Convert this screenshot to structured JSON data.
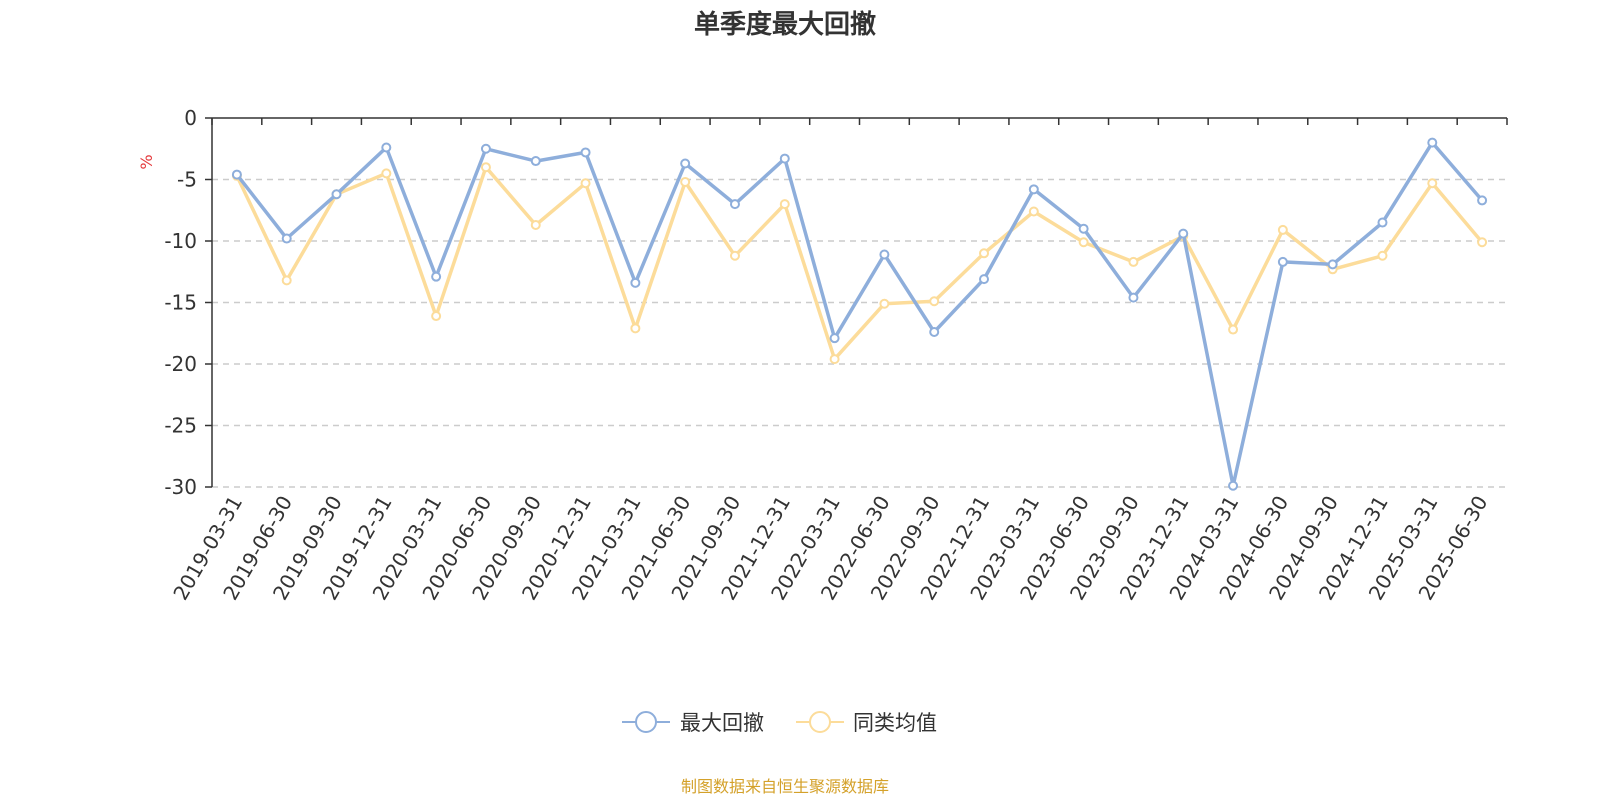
{
  "chart_data": {
    "type": "line",
    "title": "单季度最大回撤",
    "ylabel": "%",
    "ylim": [
      -30,
      0
    ],
    "yticks": [
      0,
      -5,
      -10,
      -15,
      -20,
      -25,
      -30
    ],
    "grid": true,
    "legend_position": "bottom-center",
    "categories": [
      "2019-03-31",
      "2019-06-30",
      "2019-09-30",
      "2019-12-31",
      "2020-03-31",
      "2020-06-30",
      "2020-09-30",
      "2020-12-31",
      "2021-03-31",
      "2021-06-30",
      "2021-09-30",
      "2021-12-31",
      "2022-03-31",
      "2022-06-30",
      "2022-09-30",
      "2022-12-31",
      "2023-03-31",
      "2023-06-30",
      "2023-09-30",
      "2023-12-31",
      "2024-03-31",
      "2024-06-30",
      "2024-09-30",
      "2024-12-31",
      "2025-03-31",
      "2025-06-30"
    ],
    "series": [
      {
        "name": "最大回撤",
        "color": "#8eaedb",
        "values": [
          -4.6,
          -9.8,
          -6.2,
          -2.4,
          -12.9,
          -2.5,
          -3.5,
          -2.8,
          -13.4,
          -3.7,
          -7.0,
          -3.3,
          -17.9,
          -11.1,
          -17.4,
          -13.1,
          -5.8,
          -9.0,
          -14.6,
          -9.4,
          -29.9,
          -11.7,
          -11.9,
          -8.5,
          -2.0,
          -6.7
        ]
      },
      {
        "name": "同类均值",
        "color": "#fcdc9a",
        "values": [
          -4.7,
          -13.2,
          -6.2,
          -4.5,
          -16.1,
          -4.0,
          -8.7,
          -5.3,
          -17.1,
          -5.2,
          -11.2,
          -7.0,
          -19.6,
          -15.1,
          -14.9,
          -11.0,
          -7.6,
          -10.1,
          -11.7,
          -9.6,
          -17.2,
          -9.1,
          -12.3,
          -11.2,
          -5.3,
          -10.1
        ]
      }
    ]
  },
  "source_text": "制图数据来自恒生聚源数据库"
}
